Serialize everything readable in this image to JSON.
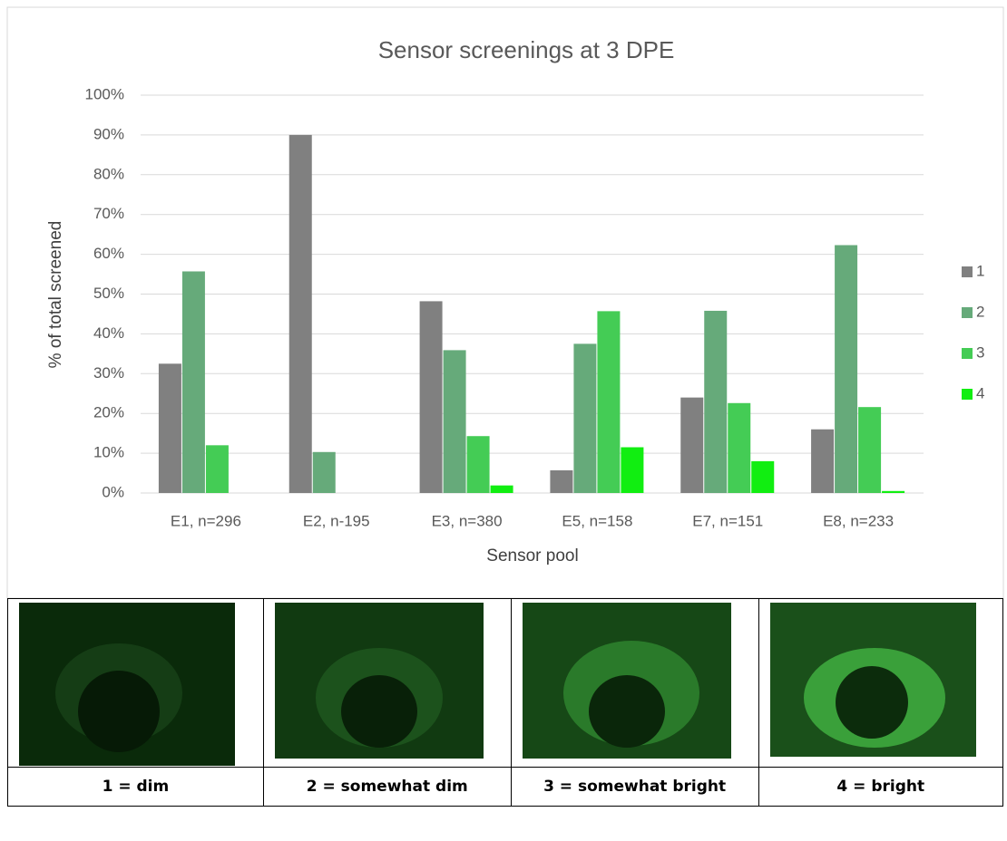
{
  "chart_data": {
    "type": "bar",
    "title": "Sensor screenings at 3 DPE",
    "x_label": "Sensor pool",
    "y_label": "% of total screened",
    "categories": [
      "E1, n=296",
      "E2, n-195",
      "E3, n=380",
      "E5, n=158",
      "E7, n=151",
      "E8, n=233"
    ],
    "series": [
      {
        "name": "1",
        "color": "#808080",
        "values": [
          32.5,
          90,
          48.2,
          5.7,
          24,
          16
        ]
      },
      {
        "name": "2",
        "color": "#66aa7a",
        "values": [
          55.7,
          10.3,
          35.9,
          37.5,
          45.8,
          62.3
        ]
      },
      {
        "name": "3",
        "color": "#44cc55",
        "values": [
          12,
          null,
          14.3,
          45.7,
          22.6,
          21.6
        ]
      },
      {
        "name": "4",
        "color": "#11ee11",
        "values": [
          null,
          null,
          1.9,
          11.5,
          8,
          0.5
        ]
      }
    ],
    "ylim": [
      0,
      100
    ],
    "yticks": [
      {
        "value": 0,
        "label": "0%"
      },
      {
        "value": 10,
        "label": "10%"
      },
      {
        "value": 20,
        "label": "20%"
      },
      {
        "value": 30,
        "label": "30%"
      },
      {
        "value": 40,
        "label": "40%"
      },
      {
        "value": 50,
        "label": "50%"
      },
      {
        "value": 60,
        "label": "60%"
      },
      {
        "value": 70,
        "label": "70%"
      },
      {
        "value": 80,
        "label": "80%"
      },
      {
        "value": 90,
        "label": "90%"
      },
      {
        "value": 100,
        "label": "100%"
      }
    ],
    "grid": true,
    "legend": "right"
  },
  "image_table": {
    "labels": [
      "1 = dim",
      "2 = somewhat dim",
      "3 = somewhat bright",
      "4 = bright"
    ]
  }
}
